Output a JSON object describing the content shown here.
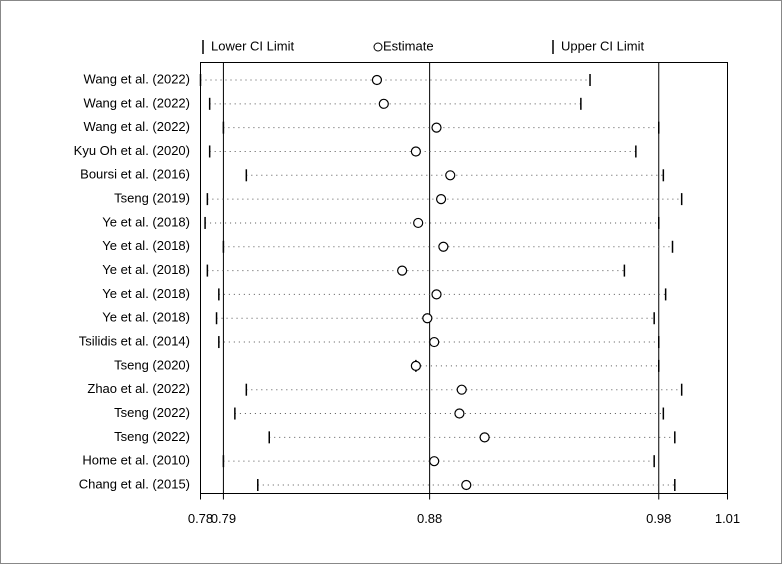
{
  "chart_data": {
    "type": "forest",
    "categories": [
      "Wang et al. (2022)",
      "Wang et al. (2022)",
      "Wang et al. (2022)",
      "Kyu Oh et al. (2020)",
      "Boursi et al. (2016)",
      "Tseng (2019)",
      "Ye et al. (2018)",
      "Ye et al. (2018)",
      "Ye et al. (2018)",
      "Ye et al. (2018)",
      "Ye et al. (2018)",
      "Tsilidis et al. (2014)",
      "Tseng (2020)",
      "Zhao et al. (2022)",
      "Tseng (2022)",
      "Tseng (2022)",
      "Home et al. (2010)",
      "Chang et al. (2015)"
    ],
    "series": [
      {
        "name": "Lower CI Limit",
        "color": "#000000",
        "values": [
          0.78,
          0.784,
          0.79,
          0.784,
          0.8,
          0.783,
          0.782,
          0.79,
          0.783,
          0.788,
          0.787,
          0.788,
          0.874,
          0.8,
          0.795,
          0.81,
          0.79,
          0.805
        ]
      },
      {
        "name": "Estimate",
        "color": "#000000",
        "values": [
          0.857,
          0.86,
          0.883,
          0.874,
          0.889,
          0.885,
          0.875,
          0.886,
          0.868,
          0.883,
          0.879,
          0.882,
          0.874,
          0.894,
          0.893,
          0.904,
          0.882,
          0.896
        ]
      },
      {
        "name": "Upper CI Limit",
        "color": "#000000",
        "values": [
          0.95,
          0.946,
          0.98,
          0.97,
          0.982,
          0.99,
          0.98,
          0.986,
          0.965,
          0.983,
          0.978,
          0.98,
          0.98,
          0.99,
          0.982,
          0.987,
          0.978,
          0.987
        ]
      }
    ],
    "xlim": [
      0.78,
      1.01
    ],
    "xticks": [
      0.78,
      0.79,
      0.88,
      0.98,
      1.01
    ],
    "grid": true
  }
}
